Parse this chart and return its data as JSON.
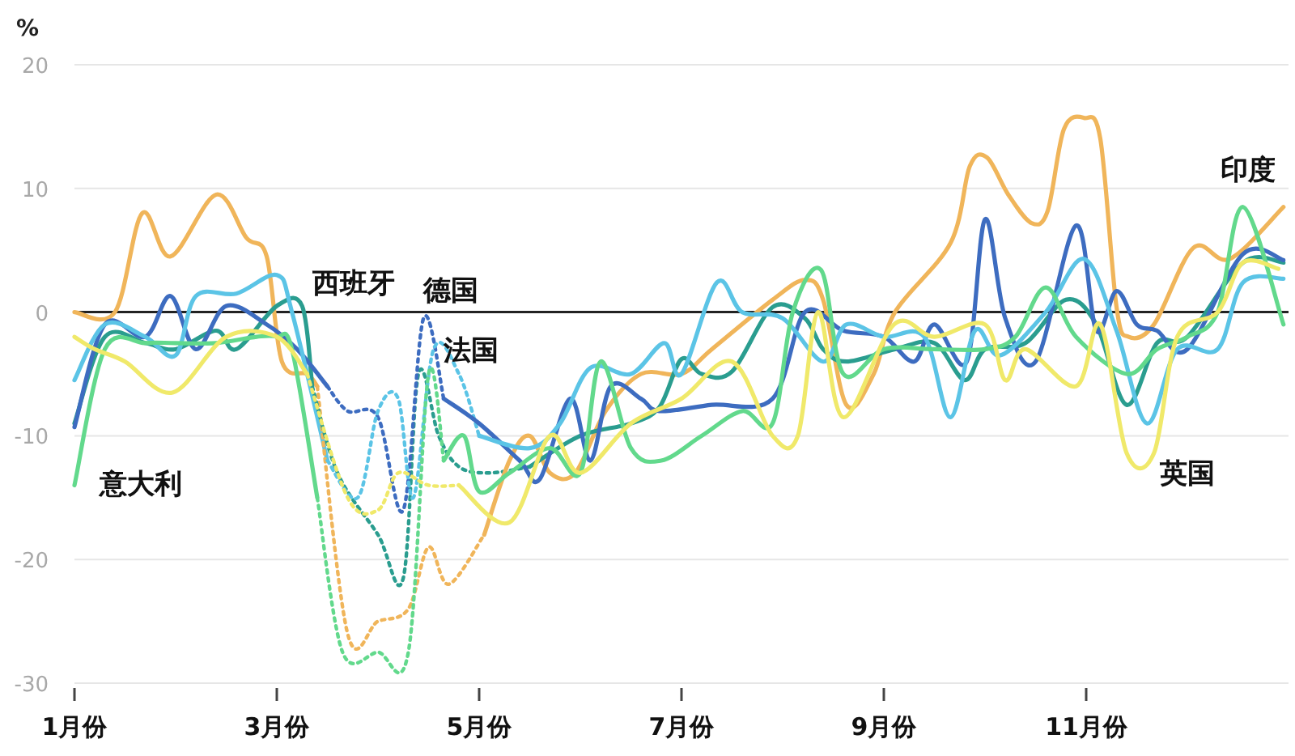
{
  "chart_data": {
    "type": "line",
    "ylabel": "%",
    "xlim": [
      1,
      13
    ],
    "xticks": [
      {
        "value": 1,
        "label": "1月份"
      },
      {
        "value": 3,
        "label": "3月份"
      },
      {
        "value": 5,
        "label": "5月份"
      },
      {
        "value": 7,
        "label": "7月份"
      },
      {
        "value": 9,
        "label": "9月份"
      },
      {
        "value": 11,
        "label": "11月份"
      }
    ],
    "ylim": [
      -30,
      20
    ],
    "yticks": [
      -30,
      -20,
      -10,
      0,
      10,
      20
    ],
    "grid": "y",
    "ref_lines": [
      {
        "axis": "y",
        "value": 0,
        "color": "#222222"
      }
    ],
    "series": [
      {
        "color": "#f0b55a",
        "line_style": "solid",
        "x": [
          1,
          1.4,
          1.67,
          1.95,
          2.4,
          2.7,
          2.9,
          3.05,
          3.3,
          3.4
        ],
        "values": [
          0,
          0,
          8,
          4.5,
          9.5,
          6,
          4.5,
          -4,
          -5,
          -6
        ]
      },
      {
        "name": "西班牙",
        "color": "#2a9d8f",
        "line_style": "solid",
        "x": [
          1,
          1.3,
          1.7,
          2.0,
          2.4,
          2.6,
          3.0,
          3.25,
          3.35
        ],
        "values": [
          -9,
          -2,
          -2.5,
          -3,
          -1.5,
          -3,
          0.5,
          0.5,
          -6
        ]
      },
      {
        "color": "#3d6cc0",
        "line_style": "solid",
        "x": [
          1,
          1.3,
          1.7,
          1.95,
          2.2,
          2.5,
          2.9,
          3.2,
          3.5
        ],
        "values": [
          -9.3,
          -1,
          -2,
          1.3,
          -3,
          0.5,
          -1,
          -3,
          -6
        ]
      },
      {
        "color": "#5bc4e6",
        "line_style": "solid",
        "x": [
          1,
          1.3,
          1.7,
          2.0,
          2.2,
          2.6,
          3.0,
          3.15,
          3.5
        ],
        "values": [
          -5.5,
          -1,
          -2,
          -3.5,
          1.3,
          1.5,
          3,
          0,
          -12
        ]
      },
      {
        "name": "意大利",
        "color": "#62d98c",
        "line_style": "solid",
        "x": [
          1,
          1.3,
          1.7,
          2.0,
          2.4,
          2.8,
          3.0,
          3.15,
          3.4
        ],
        "values": [
          -14,
          -3,
          -2.5,
          -2.5,
          -2.5,
          -2,
          -2,
          -3,
          -15
        ]
      },
      {
        "color": "#f0e96a",
        "line_style": "solid",
        "x": [
          1,
          1.2,
          1.5,
          1.97,
          2.5,
          3.0,
          3.3
        ],
        "values": [
          -2,
          -3,
          -4,
          -6.5,
          -2,
          -2,
          -5
        ]
      },
      {
        "color": "#f0b55a",
        "line_style": "dotted",
        "x": [
          3.4,
          3.7,
          4.0,
          4.3,
          4.5,
          4.7,
          5.05
        ],
        "values": [
          -6,
          -26,
          -25,
          -24,
          -19,
          -22,
          -18
        ]
      },
      {
        "color": "#2a9d8f",
        "line_style": "dotted",
        "x": [
          3.35,
          3.6,
          4.0,
          4.25,
          4.4,
          4.6,
          4.8,
          5.1,
          5.5
        ],
        "values": [
          -6,
          -13,
          -18,
          -21.5,
          -5,
          -10,
          -12.5,
          -13,
          -12.5
        ]
      },
      {
        "name": "德国",
        "color": "#3d6cc0",
        "line_style": "dotted",
        "x": [
          3.5,
          3.7,
          4.0,
          4.25,
          4.45,
          4.65
        ],
        "values": [
          -6,
          -8,
          -8.5,
          -16,
          -0.5,
          -7
        ]
      },
      {
        "name": "法国",
        "color": "#5bc4e6",
        "line_style": "dotted",
        "x": [
          3.5,
          3.8,
          4.0,
          4.2,
          4.35,
          4.55,
          4.8,
          5.0
        ],
        "values": [
          -12,
          -15,
          -8,
          -7,
          -15,
          -3,
          -5,
          -10
        ]
      },
      {
        "color": "#62d98c",
        "line_style": "dotted",
        "x": [
          3.4,
          3.65,
          4.0,
          4.3,
          4.5,
          4.65
        ],
        "values": [
          -15,
          -27.5,
          -27.5,
          -27.5,
          -5,
          -12
        ]
      },
      {
        "color": "#f0e96a",
        "line_style": "dotted",
        "x": [
          3.3,
          3.7,
          4.0,
          4.2,
          4.5,
          4.8
        ],
        "values": [
          -5,
          -15,
          -16,
          -13,
          -14,
          -14
        ]
      },
      {
        "name": "印度",
        "color": "#f0b55a",
        "line_style": "solid",
        "x": [
          5.05,
          5.3,
          5.5,
          5.7,
          5.95,
          6.25,
          6.6,
          7.0,
          7.3,
          7.9,
          8.22,
          8.4,
          8.63,
          8.9,
          9.11,
          9.66,
          9.85,
          10.02,
          10.23,
          10.46,
          10.62,
          10.78,
          10.98,
          11.14,
          11.3,
          11.42,
          11.67,
          12.06,
          12.42,
          12.95
        ],
        "values": [
          -18,
          -12,
          -10,
          -13,
          -13,
          -8,
          -5,
          -5,
          -3,
          1,
          2.6,
          1,
          -7.5,
          -5,
          0,
          5.6,
          11.8,
          12.5,
          9.5,
          7.2,
          8.2,
          14.8,
          15.7,
          14,
          0.4,
          -2,
          -1,
          5.2,
          4.3,
          8.5
        ]
      },
      {
        "color": "#2a9d8f",
        "line_style": "solid",
        "x": [
          5.5,
          6.0,
          6.5,
          6.78,
          7.0,
          7.2,
          7.5,
          7.9,
          8.22,
          8.4,
          8.63,
          9.11,
          9.5,
          9.8,
          10.0,
          10.4,
          10.8,
          11.1,
          11.4,
          11.7,
          12.0,
          12.55,
          12.95
        ],
        "values": [
          -12.5,
          -10,
          -9,
          -7.7,
          -3.8,
          -5,
          -4.8,
          0.4,
          -0.5,
          -3,
          -4,
          -3,
          -2.5,
          -5.5,
          -3,
          -2.5,
          1,
          -1,
          -7.5,
          -2.5,
          -2,
          4,
          4
        ]
      },
      {
        "color": "#3d6cc0",
        "line_style": "solid",
        "x": [
          4.65,
          5.0,
          5.4,
          5.6,
          5.9,
          6.1,
          6.3,
          6.6,
          6.78,
          7.3,
          7.9,
          8.22,
          8.6,
          9.0,
          9.3,
          9.5,
          9.82,
          10.0,
          10.2,
          10.5,
          10.9,
          11.1,
          11.3,
          11.5,
          11.7,
          12.0,
          12.55,
          12.95
        ],
        "values": [
          -7,
          -9,
          -12,
          -13.5,
          -7,
          -12,
          -6,
          -7,
          -8,
          -7.5,
          -7,
          0,
          -1.5,
          -2,
          -4,
          -1,
          -4,
          7.5,
          -0.5,
          -4,
          7,
          -1.5,
          1.7,
          -1,
          -1.5,
          -3,
          4.7,
          4.2
        ]
      },
      {
        "color": "#5bc4e6",
        "line_style": "solid",
        "x": [
          5.0,
          5.5,
          5.8,
          6.1,
          6.5,
          6.83,
          7.0,
          7.35,
          7.6,
          8.0,
          8.4,
          8.63,
          9.0,
          9.4,
          9.66,
          9.9,
          10.15,
          10.6,
          10.98,
          11.3,
          11.6,
          11.9,
          12.3,
          12.55,
          12.95
        ],
        "values": [
          -10,
          -11,
          -9,
          -4.5,
          -5,
          -2.5,
          -5,
          2.4,
          0,
          -0.5,
          -4,
          -1,
          -2,
          -2,
          -8.5,
          -1.5,
          -3.5,
          0,
          4.3,
          -1.5,
          -9,
          -3,
          -3,
          2.4,
          2.7
        ]
      },
      {
        "color": "#62d98c",
        "line_style": "solid",
        "x": [
          4.65,
          4.85,
          5.0,
          5.3,
          5.7,
          6.0,
          6.2,
          6.5,
          6.8,
          7.2,
          7.6,
          7.9,
          8.1,
          8.38,
          8.6,
          9.0,
          9.5,
          10.0,
          10.3,
          10.6,
          10.9,
          11.4,
          11.7,
          12.0,
          12.3,
          12.55,
          12.95
        ],
        "values": [
          -12,
          -10,
          -14.5,
          -13,
          -11,
          -13,
          -4,
          -11,
          -12,
          -10,
          -8,
          -9,
          0,
          3.4,
          -5,
          -3,
          -3,
          -3,
          -2,
          2,
          -2,
          -5,
          -3,
          -2,
          0,
          8.5,
          -1
        ]
      },
      {
        "name": "英国",
        "color": "#f0e96a",
        "line_style": "solid",
        "x": [
          4.8,
          5.3,
          5.7,
          6.0,
          6.5,
          7.0,
          7.5,
          7.9,
          8.15,
          8.35,
          8.6,
          9.1,
          9.5,
          10.0,
          10.2,
          10.4,
          10.9,
          11.14,
          11.4,
          11.67,
          11.9,
          12.3,
          12.55,
          12.9
        ],
        "values": [
          -14,
          -17,
          -10,
          -13,
          -9,
          -7,
          -4,
          -10,
          -10,
          0,
          -8.5,
          -1,
          -2,
          -1,
          -5.5,
          -3,
          -6,
          -1,
          -11.4,
          -11.4,
          -2,
          0,
          4,
          3.5
        ]
      }
    ]
  }
}
